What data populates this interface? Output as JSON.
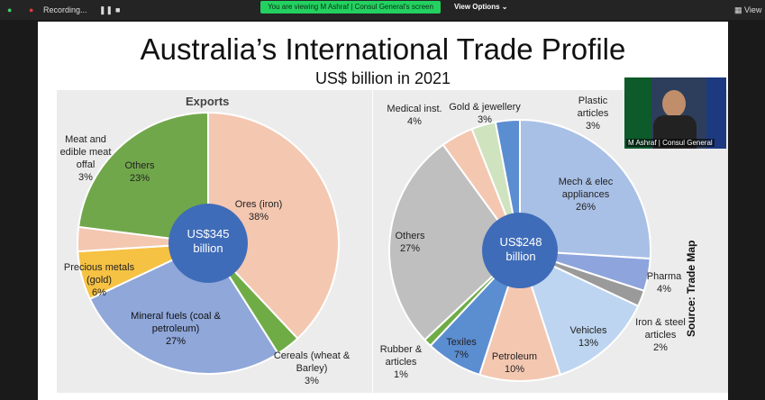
{
  "toolbar": {
    "recording_label": "Recording...",
    "sharing_banner": "You are viewing M Ashraf | Consul General's screen",
    "view_options_label": "View Options",
    "view_label": "View"
  },
  "slide": {
    "title": "Australia’s International Trade Profile",
    "subtitle": "US$ billion in 2021",
    "source": "Source: Trade Map"
  },
  "video": {
    "participant_name": "M Ashraf | Consul General"
  },
  "exports": {
    "heading": "Exports",
    "center_line1": "US$345",
    "center_line2": "billion",
    "labels": {
      "ores": [
        "Ores (iron)",
        "38%"
      ],
      "cereals": [
        "Cereals (wheat &",
        "Barley)",
        "3%"
      ],
      "mineral": [
        "Mineral fuels (coal &",
        "petroleum)",
        "27%"
      ],
      "precious": [
        "Precious metals",
        "(gold)",
        "6%"
      ],
      "meat": [
        "Meat and",
        "edible meat",
        "offal",
        "3%"
      ],
      "others": [
        "Others",
        "23%"
      ]
    }
  },
  "imports": {
    "center_line1": "US$248",
    "center_line2": "billion",
    "labels": {
      "mech": [
        "Mech & elec",
        "appliances",
        "26%"
      ],
      "pharma": [
        "Pharma",
        "4%"
      ],
      "iron": [
        "Iron & steel",
        "articles",
        "2%"
      ],
      "vehicles": [
        "Vehicles",
        "13%"
      ],
      "petroleum": [
        "Petroleum",
        "10%"
      ],
      "textiles": [
        "Texiles",
        "7%"
      ],
      "rubber": [
        "Rubber &",
        "articles",
        "1%"
      ],
      "others": [
        "Others",
        "27%"
      ],
      "medical": [
        "Medical inst.",
        "4%"
      ],
      "gold": [
        "Gold & jewellery",
        "3%"
      ],
      "plastic": [
        "Plastic",
        "articles",
        "3%"
      ]
    }
  },
  "chart_data": [
    {
      "type": "pie",
      "title": "Exports",
      "center_text": "US$345 billion",
      "categories": [
        "Ores (iron)",
        "Cereals (wheat & Barley)",
        "Mineral fuels (coal & petroleum)",
        "Precious metals (gold)",
        "Meat and edible meat offal",
        "Others"
      ],
      "values": [
        38,
        3,
        27,
        6,
        3,
        23
      ],
      "colors": [
        "#f4c7b1",
        "#6fac46",
        "#8fa7d9",
        "#f6c244",
        "#f4c7b1",
        "#71a74b"
      ]
    },
    {
      "type": "pie",
      "title": "",
      "center_text": "US$248 billion",
      "categories": [
        "Mech & elec appliances",
        "Pharma",
        "Iron & steel articles",
        "Vehicles",
        "Petroleum",
        "Texiles",
        "Rubber & articles",
        "Others",
        "Medical inst.",
        "Gold & jewellery",
        "Plastic articles"
      ],
      "values": [
        26,
        4,
        2,
        13,
        10,
        7,
        1,
        27,
        4,
        3,
        3
      ],
      "colors": [
        "#a9c0e6",
        "#8ea4dc",
        "#9a9a9a",
        "#bdd5f0",
        "#f4c7b1",
        "#5b8dd1",
        "#6fac46",
        "#bfbfbf",
        "#f4c7b1",
        "#cfe3bf",
        "#5b8dd1"
      ]
    }
  ]
}
